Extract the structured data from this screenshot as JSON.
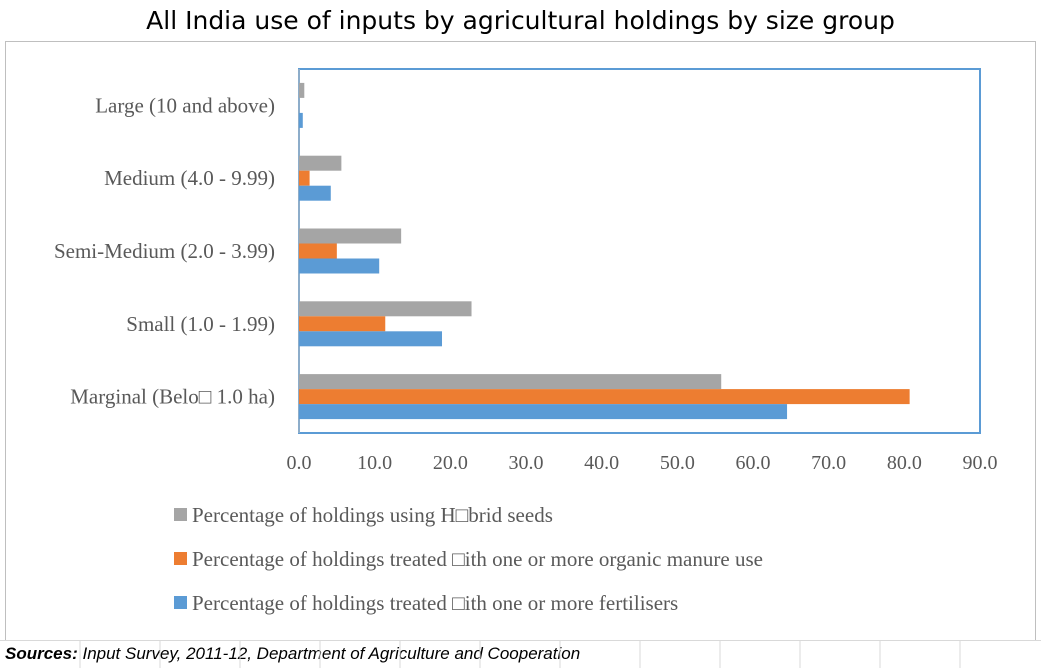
{
  "title": "All India use of inputs by agricultural holdings by size group",
  "chart_data": {
    "type": "bar",
    "orientation": "horizontal",
    "categories": [
      "Large (10 and above)",
      "Medium (4.0 - 9.99)",
      "Semi-Medium (2.0 - 3.99)",
      "Small (1.0 - 1.99)",
      "Marginal (Belo□ 1.0 ha)"
    ],
    "series": [
      {
        "name": "Percentage of  holdings using H□brid seeds",
        "color": "#a5a5a5",
        "values": [
          0.7,
          5.6,
          13.5,
          22.8,
          55.8
        ]
      },
      {
        "name": "Percentage of holdings treated □ith one or more organic manure use",
        "color": "#ed7d31",
        "values": [
          0.0,
          1.4,
          5.0,
          11.4,
          80.7
        ]
      },
      {
        "name": "Percentage of holdings treated □ith one or more fertilisers",
        "color": "#5b9bd5",
        "values": [
          0.5,
          4.2,
          10.6,
          18.9,
          64.5
        ]
      }
    ],
    "xlim": [
      0,
      90
    ],
    "xticks": [
      "0.0",
      "10.0",
      "20.0",
      "30.0",
      "40.0",
      "50.0",
      "60.0",
      "70.0",
      "80.0",
      "90.0"
    ],
    "legend_position": "bottom"
  },
  "sources": {
    "label": "Sources:",
    "text": " Input Survey, 2011-12, Department of Agriculture and Cooperation"
  }
}
